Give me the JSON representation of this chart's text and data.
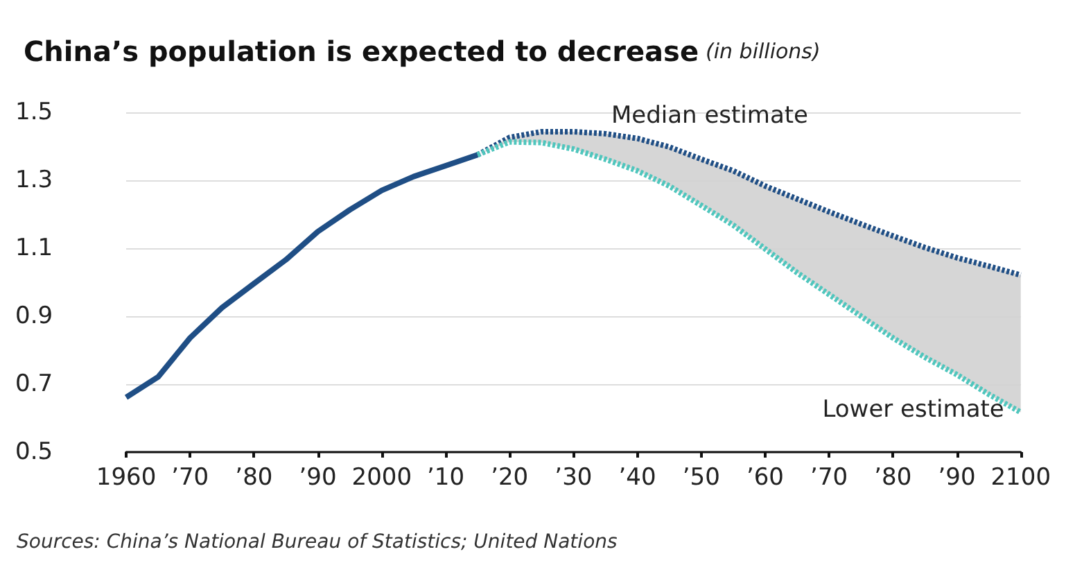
{
  "chart_data": {
    "type": "line",
    "title": "China’s population is expected to decrease",
    "subtitle": "(in billions)",
    "xlim": [
      1960,
      2100
    ],
    "xticks": [
      1960,
      {
        "value": 1970,
        "label": "’70"
      },
      {
        "value": 1980,
        "label": "’80"
      },
      {
        "value": 1990,
        "label": "’90"
      },
      2000,
      {
        "value": 2010,
        "label": "’10"
      },
      {
        "value": 2020,
        "label": "’20"
      },
      {
        "value": 2030,
        "label": "’30"
      },
      {
        "value": 2040,
        "label": "’40"
      },
      {
        "value": 2050,
        "label": "’50"
      },
      {
        "value": 2060,
        "label": "’60"
      },
      {
        "value": 2070,
        "label": "’70"
      },
      {
        "value": 2080,
        "label": "’80"
      },
      {
        "value": 2090,
        "label": "’90"
      },
      2100
    ],
    "ylim": [
      0.5,
      1.5
    ],
    "yticks": [
      0.5,
      0.7,
      0.9,
      1.1,
      1.3,
      1.5
    ],
    "grid": "y",
    "series": [
      {
        "color": "#1f4e85",
        "line_style": "solid",
        "x": [
          1960,
          1965,
          1970,
          1975,
          1980,
          1985,
          1990,
          1995,
          2000,
          2005,
          2010,
          2015
        ],
        "values": [
          0.661,
          0.721,
          0.836,
          0.925,
          0.996,
          1.066,
          1.149,
          1.213,
          1.27,
          1.311,
          1.343,
          1.375
        ]
      },
      {
        "name": "Median estimate",
        "color": "#1f4e85",
        "line_style": "dotted",
        "x": [
          2015,
          2020,
          2025,
          2030,
          2035,
          2040,
          2045,
          2050,
          2055,
          2060,
          2065,
          2070,
          2075,
          2080,
          2085,
          2090,
          2095,
          2100
        ],
        "values": [
          1.375,
          1.426,
          1.443,
          1.443,
          1.437,
          1.423,
          1.398,
          1.362,
          1.328,
          1.283,
          1.245,
          1.207,
          1.171,
          1.136,
          1.102,
          1.072,
          1.047,
          1.021
        ],
        "lower": [
          1.375,
          1.413,
          1.411,
          1.392,
          1.362,
          1.328,
          1.283,
          1.226,
          1.168,
          1.098,
          1.028,
          0.964,
          0.9,
          0.836,
          0.779,
          0.728,
          0.67,
          0.617
        ],
        "upper": [
          1.375,
          1.426,
          1.443,
          1.443,
          1.437,
          1.423,
          1.398,
          1.362,
          1.328,
          1.283,
          1.245,
          1.207,
          1.171,
          1.136,
          1.102,
          1.072,
          1.047,
          1.021
        ]
      },
      {
        "name": "Lower estimate",
        "color": "#4fc6bd",
        "line_style": "dotted",
        "x": [
          2015,
          2020,
          2025,
          2030,
          2035,
          2040,
          2045,
          2050,
          2055,
          2060,
          2065,
          2070,
          2075,
          2080,
          2085,
          2090,
          2095,
          2100
        ],
        "values": [
          1.375,
          1.413,
          1.411,
          1.392,
          1.362,
          1.328,
          1.283,
          1.226,
          1.168,
          1.098,
          1.028,
          0.964,
          0.9,
          0.836,
          0.779,
          0.728,
          0.67,
          0.617
        ]
      }
    ],
    "annotations": [
      "Sources: China’s National Bureau of Statistics; United Nations"
    ]
  }
}
